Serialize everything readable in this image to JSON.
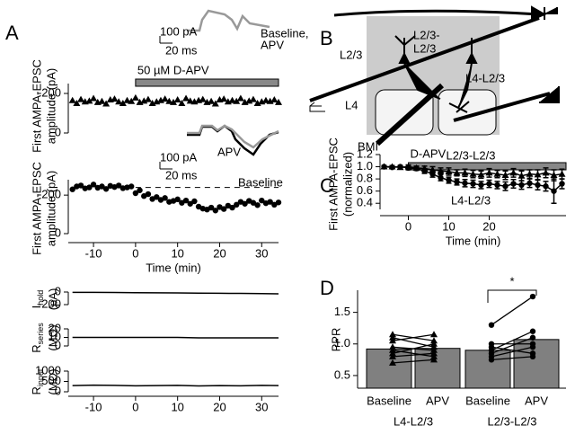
{
  "panel_labels": [
    "A",
    "B",
    "C",
    "D"
  ],
  "diagram": {
    "labels": [
      "L2/3",
      "L4-L2/3",
      "L4",
      "BMI"
    ],
    "pair_label": [
      "L2/3-",
      "L2/3"
    ]
  },
  "chart_data": [
    {
      "type": "scatter",
      "marker": "triangle",
      "color": "#000000",
      "ylabel": [
        "First AMPA-EPSC",
        "amplitude (pA)"
      ],
      "annotation": {
        "text": "50 µM D-APV",
        "x": [
          0,
          34
        ]
      },
      "inset": {
        "scale_y": "100 pA",
        "scale_x": "20 ms",
        "labels": [
          "Baseline,",
          "APV"
        ]
      },
      "xlim": [
        -16,
        34
      ],
      "ylim": [
        0,
        -250
      ],
      "yticks": [
        -200,
        0
      ],
      "x": [
        -15,
        -14,
        -13,
        -12,
        -11,
        -10,
        -9,
        -8,
        -7,
        -6,
        -5,
        -4,
        -3,
        -2,
        -1,
        0,
        1,
        2,
        3,
        4,
        5,
        6,
        7,
        8,
        9,
        10,
        11,
        12,
        13,
        14,
        15,
        16,
        17,
        18,
        19,
        20,
        21,
        22,
        23,
        24,
        25,
        26,
        27,
        28,
        29,
        30,
        31,
        32,
        33,
        34
      ],
      "values": [
        -165,
        -150,
        -170,
        -158,
        -162,
        -175,
        -155,
        -160,
        -148,
        -168,
        -172,
        -158,
        -150,
        -165,
        -160,
        -178,
        -155,
        -162,
        -170,
        -150,
        -158,
        -165,
        -172,
        -160,
        -155,
        -168,
        -150,
        -175,
        -162,
        -158,
        -165,
        -170,
        -155,
        -160,
        -148,
        -168,
        -172,
        -158,
        -165,
        -160,
        -175,
        -155,
        -162,
        -170,
        -150,
        -158,
        -165,
        -160,
        -168,
        -155
      ]
    },
    {
      "type": "scatter",
      "marker": "circle",
      "color": "#000000",
      "ylabel": [
        "First AMPA-EPSC",
        "amplitude (pA)"
      ],
      "xlabel": "Time (min)",
      "inset": {
        "scale_y": "100 pA",
        "scale_x": "20 ms",
        "labels": [
          "APV",
          "Baseline"
        ]
      },
      "reference_line": -240,
      "xlim": [
        -16,
        34
      ],
      "ylim": [
        0,
        -280
      ],
      "yticks": [
        -200,
        0
      ],
      "xticks": [
        -10,
        0,
        10,
        20,
        30
      ],
      "x": [
        -15,
        -14,
        -13,
        -12,
        -11,
        -10,
        -9,
        -8,
        -7,
        -6,
        -5,
        -4,
        -3,
        -2,
        -1,
        0,
        1,
        2,
        3,
        4,
        5,
        6,
        7,
        8,
        9,
        10,
        11,
        12,
        13,
        14,
        15,
        16,
        17,
        18,
        19,
        20,
        21,
        22,
        23,
        24,
        25,
        26,
        27,
        28,
        29,
        30,
        31,
        32,
        33,
        34
      ],
      "values": [
        -230,
        -245,
        -250,
        -235,
        -240,
        -255,
        -238,
        -245,
        -232,
        -248,
        -242,
        -250,
        -236,
        -240,
        -245,
        -210,
        -225,
        -195,
        -205,
        -180,
        -190,
        -175,
        -185,
        -165,
        -170,
        -178,
        -160,
        -172,
        -155,
        -168,
        -140,
        -130,
        -125,
        -135,
        -120,
        -138,
        -128,
        -145,
        -135,
        -150,
        -165,
        -155,
        -170,
        -160,
        -148,
        -172,
        -158,
        -165,
        -150,
        -162
      ]
    },
    {
      "type": "line",
      "color": "#000000",
      "ylabel": {
        "symbol": "I",
        "subscript": "hold",
        "unit": "(pA)"
      },
      "xlim": [
        -16,
        34
      ],
      "ylim": [
        0,
        -200
      ],
      "yticks": [
        0,
        -200
      ],
      "x": [
        -15,
        -10,
        -5,
        0,
        5,
        10,
        15,
        20,
        25,
        30,
        34
      ],
      "values": [
        -5,
        -6,
        -8,
        -10,
        -12,
        -15,
        -18,
        -20,
        -22,
        -25,
        -28
      ]
    },
    {
      "type": "line",
      "color": "#000000",
      "ylabel": {
        "symbol": "R",
        "subscript": "series",
        "unit": "(MΩ)"
      },
      "xlim": [
        -16,
        34
      ],
      "ylim": [
        0,
        20
      ],
      "yticks": [
        20,
        10,
        0
      ],
      "x": [
        -15,
        -10,
        -5,
        0,
        5,
        10,
        15,
        20,
        25,
        30,
        34
      ],
      "values": [
        10,
        10,
        10,
        10,
        10,
        10,
        9.5,
        9.5,
        9.5,
        9.5,
        9.5
      ]
    },
    {
      "type": "line",
      "color": "#000000",
      "ylabel": {
        "symbol": "R",
        "subscript": "input",
        "unit": "(MΩ)"
      },
      "xlim": [
        -16,
        34
      ],
      "ylim": [
        0,
        1000
      ],
      "yticks": [
        1000,
        500,
        0
      ],
      "xticks": [
        -10,
        0,
        10,
        20,
        30
      ],
      "x": [
        -15,
        -10,
        -5,
        0,
        5,
        10,
        15,
        20,
        25,
        30,
        34
      ],
      "values": [
        300,
        320,
        310,
        290,
        300,
        310,
        280,
        300,
        290,
        310,
        300
      ]
    },
    {
      "type": "line",
      "ylabel": [
        "First AMPA-EPSC",
        "(normalized)"
      ],
      "xlabel": "Time (min)",
      "annotation": {
        "text": "D-APV",
        "x": [
          0,
          39
        ]
      },
      "xlim": [
        -7,
        39
      ],
      "ylim": [
        0.3,
        1.2
      ],
      "yticks": [
        0.4,
        0.6,
        0.8,
        {
          "value": 1,
          "label": "1.0"
        },
        1.2
      ],
      "xticks": [
        0,
        10,
        20
      ],
      "x": [
        -6,
        -4,
        -2,
        0,
        2,
        4,
        6,
        8,
        10,
        12,
        14,
        16,
        18,
        20,
        22,
        24,
        26,
        28,
        30,
        32,
        34,
        36,
        38
      ],
      "series": [
        {
          "name": "L2/3-L2/3",
          "marker": "triangle",
          "color": "#000000",
          "values": [
            1.0,
            1.0,
            0.99,
            1.0,
            0.98,
            0.97,
            0.95,
            0.93,
            0.92,
            0.9,
            0.9,
            0.88,
            0.87,
            0.9,
            0.88,
            0.86,
            0.9,
            0.85,
            0.88,
            0.87,
            0.9,
            0.86,
            0.88
          ],
          "errors": [
            0.02,
            0.02,
            0.02,
            0.03,
            0.03,
            0.04,
            0.05,
            0.05,
            0.06,
            0.05,
            0.06,
            0.06,
            0.06,
            0.07,
            0.06,
            0.07,
            0.07,
            0.08,
            0.07,
            0.08,
            0.08,
            0.09,
            0.08
          ]
        },
        {
          "name": "L4-L2/3",
          "marker": "circle",
          "color": "#000000",
          "values": [
            1.0,
            0.99,
            1.0,
            0.98,
            0.97,
            0.93,
            0.88,
            0.82,
            0.78,
            0.75,
            0.73,
            0.72,
            0.7,
            0.72,
            0.7,
            0.68,
            0.72,
            0.7,
            0.73,
            0.7,
            0.68,
            0.6,
            0.72
          ],
          "errors": [
            0.02,
            0.02,
            0.02,
            0.03,
            0.03,
            0.04,
            0.05,
            0.05,
            0.05,
            0.05,
            0.06,
            0.06,
            0.06,
            0.06,
            0.06,
            0.07,
            0.07,
            0.07,
            0.07,
            0.08,
            0.08,
            0.2,
            0.08
          ]
        }
      ]
    },
    {
      "type": "bar",
      "ylabel": "PPR",
      "color": "#808080",
      "categories": [
        "Baseline",
        "APV",
        "Baseline",
        "APV"
      ],
      "groups": [
        "L4-L2/3",
        "L2/3-L2/3"
      ],
      "values": [
        0.92,
        0.93,
        0.9,
        1.07
      ],
      "significance": "*",
      "ylim": [
        0.3,
        1.85
      ],
      "yticks": [
        0.5,
        {
          "value": 1,
          "label": "1.0"
        },
        1.5
      ],
      "pairs": [
        {
          "marker": "triangle",
          "baseline": [
            0.7,
            0.8,
            0.85,
            0.9,
            0.95,
            1.05,
            1.1,
            1.15
          ],
          "apv": [
            0.75,
            0.85,
            1.0,
            0.8,
            0.9,
            1.15,
            0.95,
            1.05
          ]
        },
        {
          "marker": "circle",
          "baseline": [
            0.75,
            0.8,
            0.85,
            0.9,
            0.95,
            1.0,
            1.3
          ],
          "apv": [
            0.8,
            0.95,
            1.1,
            1.2,
            0.85,
            1.0,
            1.75
          ]
        }
      ]
    }
  ]
}
